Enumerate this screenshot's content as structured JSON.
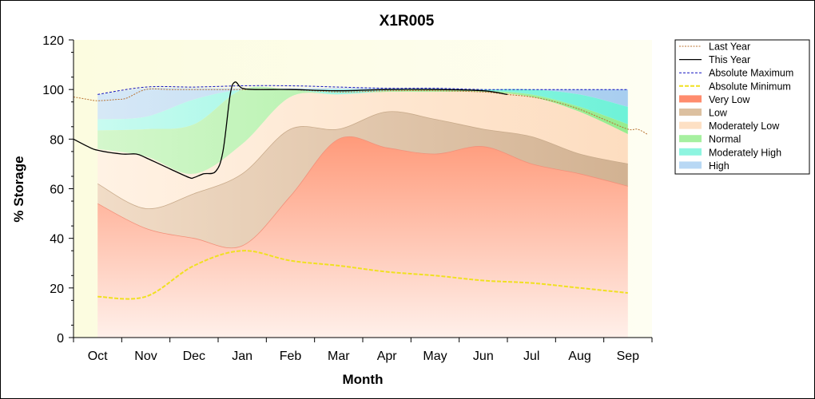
{
  "chart_data": {
    "type": "area",
    "title": "X1R005",
    "xlabel": "Month",
    "ylabel": "% Storage",
    "ylim": [
      0,
      120
    ],
    "yticks": [
      0,
      20,
      40,
      60,
      80,
      100,
      120
    ],
    "x_categories": [
      "Oct",
      "Nov",
      "Dec",
      "Jan",
      "Feb",
      "Mar",
      "Apr",
      "May",
      "Jun",
      "Jul",
      "Aug",
      "Sep"
    ],
    "x_range": [
      -0.5,
      11.5
    ],
    "band_x": [
      0,
      1,
      2,
      3,
      4,
      5,
      6,
      7,
      8,
      9,
      10,
      11
    ],
    "bands": {
      "absolute_minimum": [
        16.5,
        16.5,
        29,
        35,
        31,
        29,
        26.5,
        25,
        23,
        22,
        20,
        18
      ],
      "very_low_top": [
        54,
        44,
        40,
        37,
        57,
        80,
        76.5,
        74,
        77,
        70,
        66,
        61
      ],
      "low_top": [
        62,
        52,
        58,
        66,
        84,
        84,
        91,
        88,
        84,
        81,
        74,
        70
      ],
      "moderately_low_top": [
        76,
        73,
        66,
        78,
        97,
        98,
        99,
        99,
        99,
        97,
        91,
        82
      ],
      "normal_top": [
        83.5,
        84,
        86,
        100,
        100,
        98,
        99.5,
        100,
        99.5,
        98,
        93,
        86
      ],
      "moderately_high_top": [
        88,
        89,
        96,
        100,
        100,
        100,
        100,
        100,
        100,
        100,
        98,
        93
      ],
      "high_top": [
        98,
        100.5,
        100.5,
        100.5,
        100.5,
        100.5,
        100.5,
        100.5,
        100,
        100,
        100,
        100
      ],
      "absolute_maximum": [
        98,
        101,
        101,
        101.5,
        101.5,
        101,
        100.5,
        100.5,
        100,
        100,
        100,
        100
      ]
    },
    "series": [
      {
        "name": "Last Year",
        "x": [
          -0.5,
          -0.2,
          0,
          0.4,
          0.6,
          1,
          1.5,
          2,
          3,
          4,
          5,
          6,
          7,
          8,
          8.5,
          9,
          9.5,
          10,
          10.5,
          11,
          11.2,
          11.4
        ],
        "values": [
          97,
          96,
          95.5,
          96,
          96.5,
          100,
          100,
          100,
          100,
          100,
          99,
          99.5,
          99.5,
          99,
          98,
          97,
          95,
          92,
          88,
          84,
          84,
          82
        ]
      },
      {
        "name": "This Year",
        "x": [
          -0.5,
          -0.2,
          0,
          0.5,
          0.8,
          1,
          1.5,
          1.9,
          2,
          2.2,
          2.45,
          2.6,
          2.75,
          2.85,
          3,
          3.3,
          4,
          5,
          6,
          7,
          8,
          8.5
        ],
        "values": [
          80,
          77,
          75.5,
          74,
          74,
          72.5,
          68,
          64.5,
          64.5,
          66,
          67,
          75,
          98,
          103,
          100.5,
          100,
          100,
          99.5,
          100,
          100,
          99.5,
          98
        ]
      }
    ],
    "legend": {
      "position": "right",
      "entries": [
        "Last Year",
        "This Year",
        "Absolute Maximum",
        "Absolute Minimum",
        "Very Low",
        "Low",
        "Moderately Low",
        "Normal",
        "Moderately High",
        "High"
      ]
    },
    "colors": {
      "plot_background": "#fdfde6",
      "very_low": "#ff8c6e",
      "low": "#dcc0a0",
      "moderately_low": "#fde0c4",
      "normal": "#a6f0a0",
      "moderately_high": "#8ef5e0",
      "high": "#b8d8f4",
      "last_year": "#b87333",
      "this_year": "#000000",
      "absolute_maximum": "#1010c0",
      "absolute_minimum": "#f0e020"
    }
  }
}
